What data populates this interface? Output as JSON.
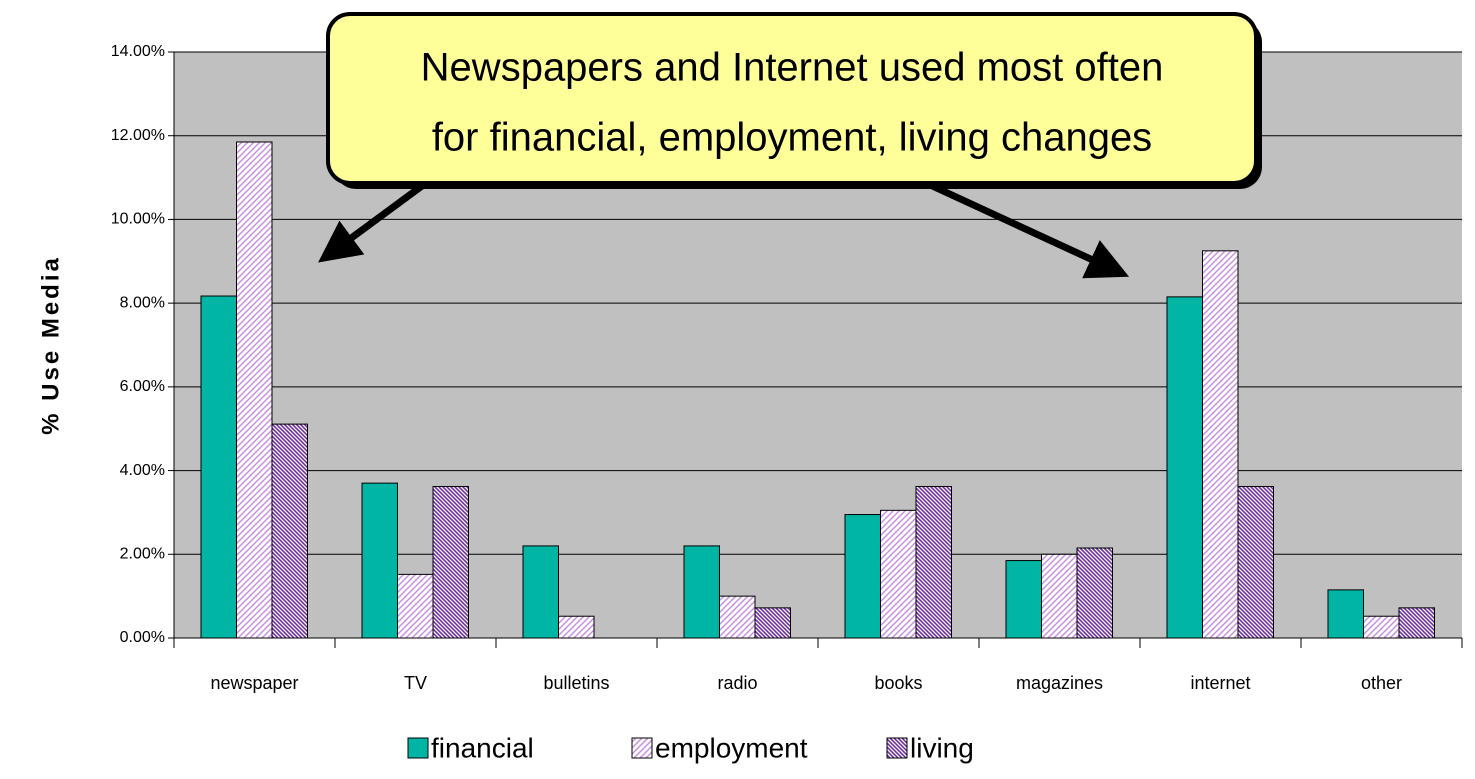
{
  "chart_data": {
    "type": "bar",
    "annotation": [
      "Newspapers and Internet used most often",
      "for financial, employment, living changes"
    ],
    "ylabel": "% Use Media",
    "categories": [
      "newspaper",
      "TV",
      "bulletins",
      "radio",
      "books",
      "magazines",
      "internet",
      "other"
    ],
    "series": [
      {
        "name": "financial",
        "color": "#00b5a3",
        "values": [
          8.17,
          3.7,
          2.2,
          2.2,
          2.95,
          1.85,
          8.15,
          1.15
        ]
      },
      {
        "name": "employment",
        "color": "#e6c8f0",
        "values": [
          11.85,
          1.52,
          0.52,
          1.0,
          3.05,
          2.0,
          9.25,
          0.52
        ]
      },
      {
        "name": "living",
        "color": "#9966cc",
        "values": [
          5.11,
          3.62,
          0,
          0.72,
          3.62,
          2.15,
          3.62,
          0.72
        ]
      }
    ],
    "ylim": [
      0,
      14
    ],
    "yticks": [
      {
        "value": 0,
        "label": "0.00%"
      },
      {
        "value": 2,
        "label": "2.00%"
      },
      {
        "value": 4,
        "label": "4.00%"
      },
      {
        "value": 6,
        "label": "6.00%"
      },
      {
        "value": 8,
        "label": "8.00%"
      },
      {
        "value": 10,
        "label": "10.00%"
      },
      {
        "value": 12,
        "label": "12.00%"
      },
      {
        "value": 14,
        "label": "14.00%"
      }
    ],
    "grid": true
  }
}
